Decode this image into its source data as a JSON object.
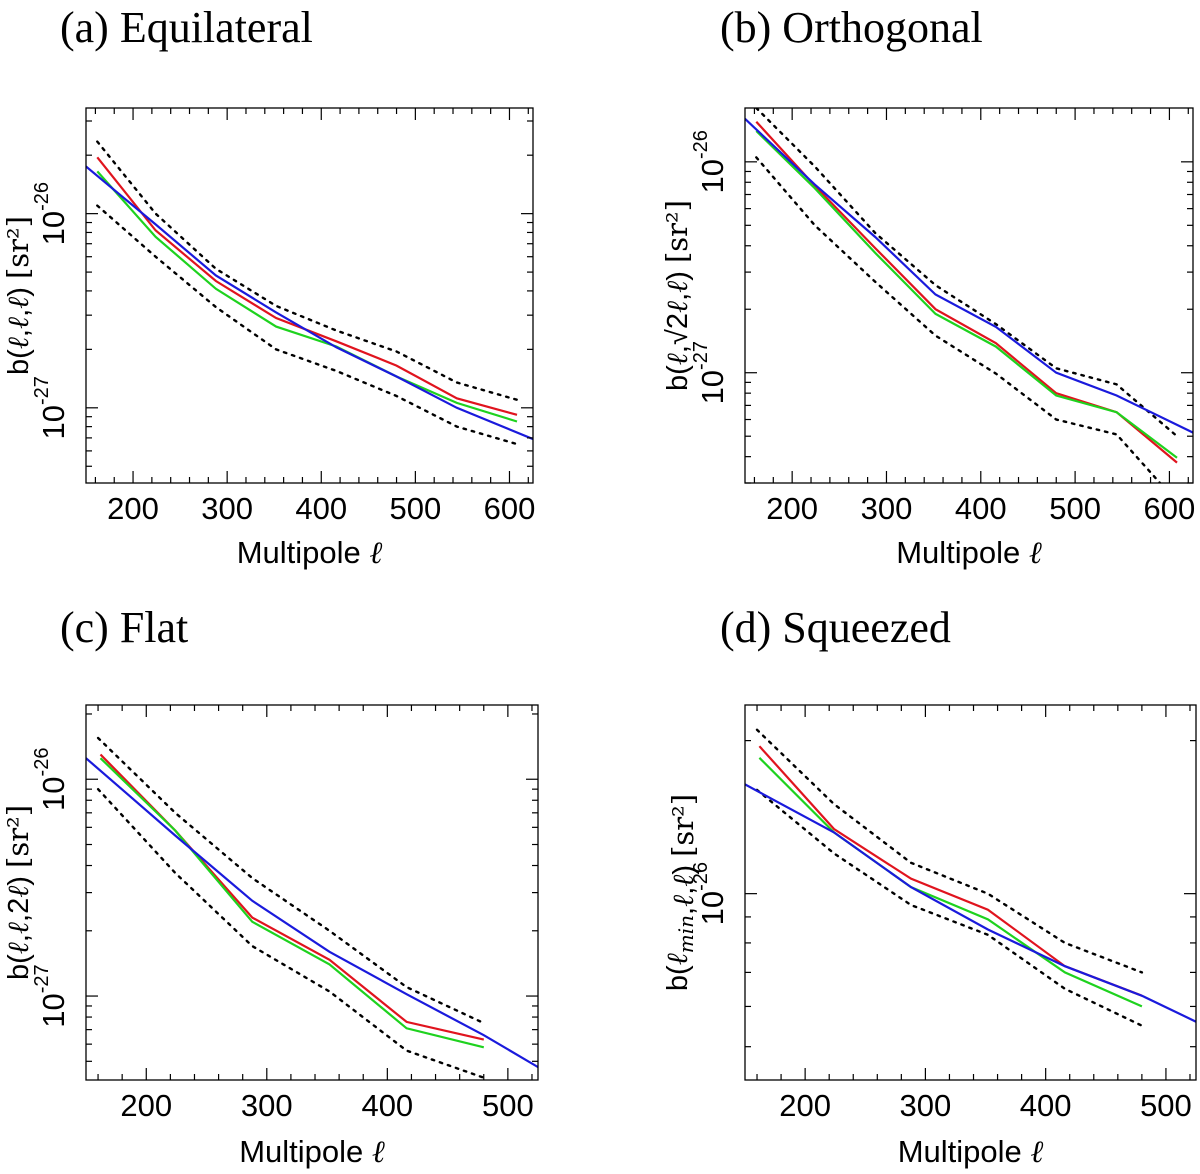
{
  "chart_data": [
    {
      "type": "line",
      "title": "(a) Equilateral",
      "xlabel": "Multipole ℓ",
      "ylabel": "b(ℓ,ℓ,ℓ) [sr²]",
      "xlim": [
        150,
        625
      ],
      "ylog": true,
      "ylim": [
        4.1e-28,
        3.5e-26
      ],
      "xticks": [
        200,
        300,
        400,
        500,
        600
      ],
      "yticks": [
        {
          "value": 1e-27,
          "base": "10",
          "exp": "-27"
        },
        {
          "value": 1e-26,
          "base": "10",
          "exp": "-26"
        }
      ],
      "series": [
        {
          "name": "upper",
          "color": "#000000",
          "dashed": true,
          "x": [
            162,
            224,
            288,
            352,
            416,
            480,
            544,
            608
          ],
          "y": [
            2.35e-26,
            1e-26,
            5.2e-27,
            3.35e-27,
            2.5e-27,
            1.95e-27,
            1.35e-27,
            1.1e-27
          ]
        },
        {
          "name": "lower",
          "color": "#000000",
          "dashed": true,
          "x": [
            162,
            224,
            288,
            352,
            416,
            480,
            544,
            608
          ],
          "y": [
            1.1e-26,
            6e-27,
            3.3e-27,
            2e-27,
            1.55e-27,
            1.15e-27,
            8e-28,
            6.5e-28
          ]
        },
        {
          "name": "red",
          "color": "#e0141e",
          "x": [
            162,
            224,
            288,
            352,
            416,
            480,
            544,
            608
          ],
          "y": [
            1.95e-26,
            8.2e-27,
            4.5e-27,
            2.9e-27,
            2.2e-27,
            1.65e-27,
            1.12e-27,
            9.2e-28
          ]
        },
        {
          "name": "green",
          "color": "#1ed21e",
          "x": [
            162,
            224,
            288,
            352,
            416,
            480,
            544,
            608
          ],
          "y": [
            1.65e-26,
            7.6e-27,
            4.1e-27,
            2.62e-27,
            2.07e-27,
            1.45e-27,
            1.06e-27,
            8.5e-28
          ]
        },
        {
          "name": "blue",
          "color": "#1a1adc",
          "x": [
            150,
            224,
            288,
            352,
            416,
            480,
            544,
            625
          ],
          "y": [
            1.75e-26,
            8.8e-27,
            4.8e-27,
            3.1e-27,
            2.05e-27,
            1.45e-27,
            1e-27,
            6.9e-28
          ]
        }
      ]
    },
    {
      "type": "line",
      "title": "(b) Orthogonal",
      "xlabel": "Multipole ℓ",
      "ylabel": "b(ℓ,√2ℓ,ℓ) [sr²]",
      "xlim": [
        150,
        625
      ],
      "ylog": true,
      "ylim": [
        3e-28,
        1.8e-26
      ],
      "xticks": [
        200,
        300,
        400,
        500,
        600
      ],
      "yticks": [
        {
          "value": 1e-27,
          "base": "10",
          "exp": "-27"
        },
        {
          "value": 1e-26,
          "base": "10",
          "exp": "-26"
        }
      ],
      "series": [
        {
          "name": "upper",
          "color": "#000000",
          "dashed": true,
          "x": [
            162,
            224,
            288,
            352,
            416,
            480,
            544,
            608
          ],
          "y": [
            1.8e-26,
            9.5e-27,
            4.6e-27,
            2.6e-27,
            1.7e-27,
            1.05e-27,
            8.8e-28,
            5e-28
          ]
        },
        {
          "name": "lower",
          "color": "#000000",
          "dashed": true,
          "x": [
            162,
            224,
            288,
            352,
            416,
            480,
            544,
            590
          ],
          "y": [
            1.05e-26,
            5e-27,
            2.7e-27,
            1.5e-27,
            9.9e-28,
            6e-28,
            5.1e-28,
            3e-28
          ]
        },
        {
          "name": "red",
          "color": "#e0141e",
          "x": [
            162,
            224,
            288,
            352,
            416,
            480,
            544,
            608
          ],
          "y": [
            1.55e-26,
            7.7e-27,
            3.9e-27,
            2e-27,
            1.38e-27,
            8e-28,
            6.5e-28,
            3.75e-28
          ]
        },
        {
          "name": "green",
          "color": "#1ed21e",
          "x": [
            162,
            224,
            288,
            352,
            416,
            480,
            544,
            608
          ],
          "y": [
            1.4e-26,
            7.5e-27,
            3.7e-27,
            1.9e-27,
            1.33e-27,
            7.8e-28,
            6.5e-28,
            3.95e-28
          ]
        },
        {
          "name": "blue",
          "color": "#1a1adc",
          "x": [
            150,
            224,
            288,
            352,
            416,
            480,
            544,
            625
          ],
          "y": [
            1.6e-26,
            7.8e-27,
            4.4e-27,
            2.35e-27,
            1.65e-27,
            1e-27,
            7.8e-28,
            5.2e-28
          ]
        }
      ]
    },
    {
      "type": "line",
      "title": "(c) Flat",
      "xlabel": "Multipole ℓ",
      "ylabel": "b(ℓ,ℓ,2ℓ) [sr²]",
      "xlim": [
        150,
        525
      ],
      "ylog": true,
      "ylim": [
        4.1e-28,
        2.2e-26
      ],
      "xticks": [
        200,
        300,
        400,
        500
      ],
      "yticks": [
        {
          "value": 1e-27,
          "base": "10",
          "exp": "-27"
        },
        {
          "value": 1e-26,
          "base": "10",
          "exp": "-26"
        }
      ],
      "series": [
        {
          "name": "upper",
          "color": "#000000",
          "dashed": true,
          "x": [
            160,
            224,
            288,
            352,
            416,
            480
          ],
          "y": [
            1.55e-26,
            7e-27,
            3.5e-27,
            2e-27,
            1.1e-27,
            7.5e-28
          ]
        },
        {
          "name": "lower",
          "color": "#000000",
          "dashed": true,
          "x": [
            160,
            224,
            288,
            352,
            416,
            480
          ],
          "y": [
            9e-27,
            3.7e-27,
            1.7e-27,
            1.05e-27,
            5.6e-28,
            4.2e-28
          ]
        },
        {
          "name": "red",
          "color": "#e0141e",
          "x": [
            162,
            224,
            288,
            352,
            416,
            480
          ],
          "y": [
            1.3e-26,
            5.8e-27,
            2.3e-27,
            1.47e-27,
            7.6e-28,
            6.3e-28
          ]
        },
        {
          "name": "green",
          "color": "#1ed21e",
          "x": [
            162,
            224,
            288,
            352,
            416,
            480
          ],
          "y": [
            1.25e-26,
            5.8e-27,
            2.2e-27,
            1.4e-27,
            7.1e-28,
            5.8e-28
          ]
        },
        {
          "name": "blue",
          "color": "#1a1adc",
          "x": [
            150,
            224,
            288,
            352,
            416,
            480,
            525
          ],
          "y": [
            1.25e-26,
            5.5e-27,
            2.75e-27,
            1.6e-27,
            1.02e-27,
            6.6e-28,
            4.7e-28
          ]
        }
      ]
    },
    {
      "type": "line",
      "title": "(d) Squeezed",
      "xlabel": "Multipole ℓ",
      "ylabel": "b(ℓmin,ℓ,ℓ) [sr²]",
      "xlim": [
        150,
        525
      ],
      "ylog": true,
      "ylim": [
        4.3e-27,
        2.35e-26
      ],
      "xticks": [
        200,
        300,
        400,
        500
      ],
      "yticks": [
        {
          "value": 1e-26,
          "base": "10",
          "exp": "-26"
        }
      ],
      "series": [
        {
          "name": "upper",
          "color": "#000000",
          "dashed": true,
          "x": [
            160,
            224,
            288,
            352,
            416,
            480
          ],
          "y": [
            2.1e-26,
            1.5e-26,
            1.15e-26,
            1e-26,
            8e-27,
            7e-27
          ]
        },
        {
          "name": "lower",
          "color": "#000000",
          "dashed": true,
          "x": [
            160,
            224,
            288,
            352,
            416,
            480
          ],
          "y": [
            1.6e-26,
            1.2e-26,
            9.5e-27,
            8.3e-27,
            6.5e-27,
            5.5e-27
          ]
        },
        {
          "name": "red",
          "color": "#e0141e",
          "x": [
            162,
            224,
            288,
            352,
            416,
            480
          ],
          "y": [
            1.95e-26,
            1.34e-26,
            1.07e-26,
            9.3e-27,
            7.2e-27,
            6.3e-27
          ]
        },
        {
          "name": "green",
          "color": "#1ed21e",
          "x": [
            162,
            224,
            288,
            352,
            416,
            480
          ],
          "y": [
            1.85e-26,
            1.32e-26,
            1.03e-26,
            8.9e-27,
            7e-27,
            6e-27
          ]
        },
        {
          "name": "blue",
          "color": "#1a1adc",
          "x": [
            150,
            224,
            288,
            352,
            416,
            480,
            525
          ],
          "y": [
            1.64e-26,
            1.32e-26,
            1.03e-26,
            8.5e-27,
            7.2e-27,
            6.3e-27,
            5.6e-27
          ]
        }
      ]
    }
  ]
}
